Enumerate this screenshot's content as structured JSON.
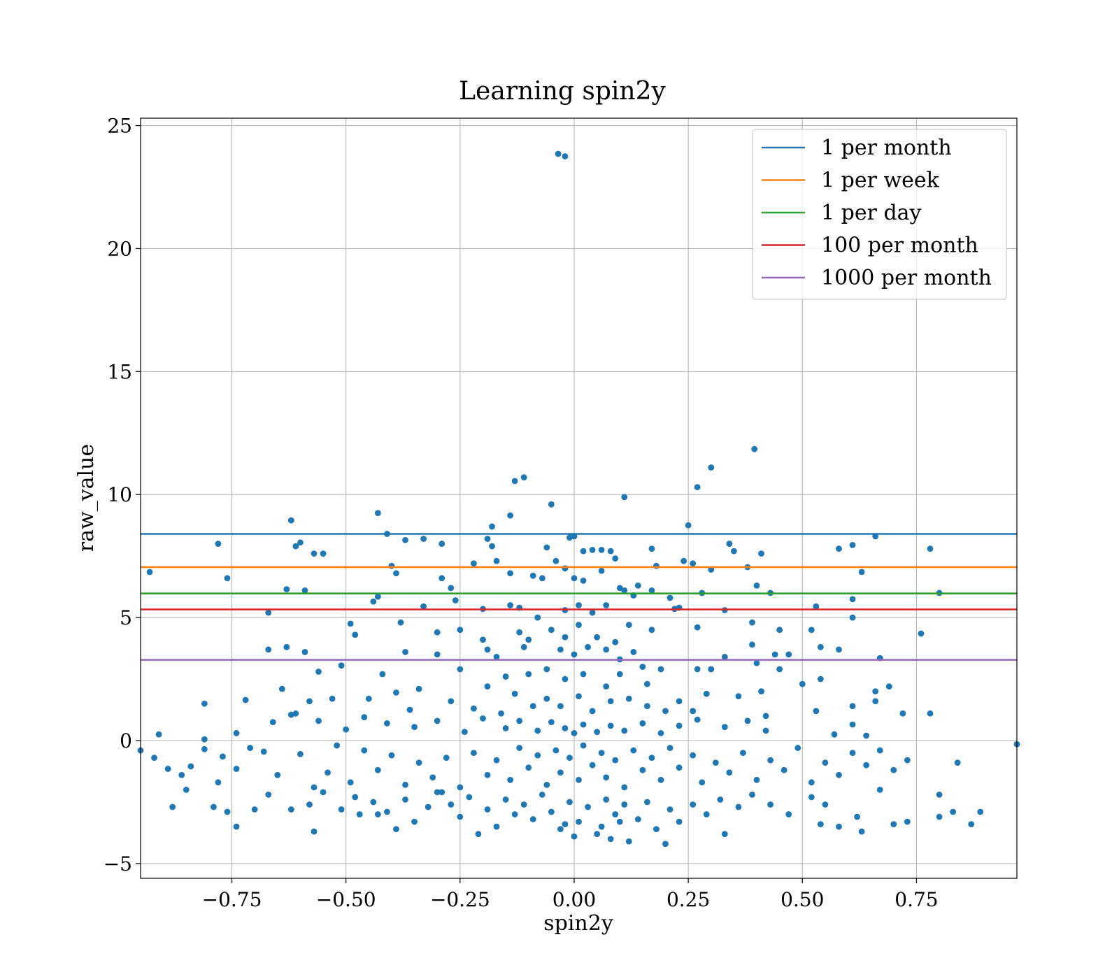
{
  "chart_data": {
    "type": "scatter",
    "title": "Learning spin2y",
    "xlabel": "spin2y",
    "ylabel": "raw_value",
    "xlim": [
      -0.95,
      0.97
    ],
    "ylim": [
      -5.6,
      25.3
    ],
    "xticks": [
      -0.75,
      -0.5,
      -0.25,
      0.0,
      0.25,
      0.5,
      0.75
    ],
    "xtick_labels": [
      "−0.75",
      "−0.50",
      "−0.25",
      "0.00",
      "0.25",
      "0.50",
      "0.75"
    ],
    "yticks": [
      -5,
      0,
      5,
      10,
      15,
      20,
      25
    ],
    "ytick_labels": [
      "−5",
      "0",
      "5",
      "10",
      "15",
      "20",
      "25"
    ],
    "grid": true,
    "legend_position": "top-right",
    "point_color": "#1f77b4",
    "hlines": [
      {
        "name": "1 per month",
        "y": 8.4,
        "color": "#1f77b4"
      },
      {
        "name": "1 per week",
        "y": 7.05,
        "color": "#ff7f0e"
      },
      {
        "name": "1 per day",
        "y": 5.98,
        "color": "#2ca02c"
      },
      {
        "name": "100 per month",
        "y": 5.33,
        "color": "#d62728"
      },
      {
        "name": "1000 per month",
        "y": 3.28,
        "color": "#9467bd"
      }
    ],
    "points": [
      [
        -0.035,
        23.85
      ],
      [
        -0.02,
        23.75
      ],
      [
        0.395,
        11.85
      ],
      [
        0.3,
        11.1
      ],
      [
        0.27,
        10.3
      ],
      [
        -0.11,
        10.7
      ],
      [
        -0.13,
        10.55
      ],
      [
        0.11,
        9.9
      ],
      [
        -0.05,
        9.6
      ],
      [
        -0.43,
        9.25
      ],
      [
        -0.14,
        9.15
      ],
      [
        -0.62,
        8.95
      ],
      [
        -0.18,
        8.7
      ],
      [
        0.25,
        8.75
      ],
      [
        -0.41,
        8.4
      ],
      [
        -0.78,
        8.0
      ],
      [
        -0.6,
        8.05
      ],
      [
        -0.37,
        8.15
      ],
      [
        -0.33,
        8.2
      ],
      [
        -0.29,
        8.0
      ],
      [
        -0.61,
        7.9
      ],
      [
        -0.57,
        7.6
      ],
      [
        -0.55,
        7.6
      ],
      [
        -0.19,
        8.2
      ],
      [
        -0.18,
        7.9
      ],
      [
        -0.06,
        7.85
      ],
      [
        -0.01,
        8.25
      ],
      [
        0.0,
        8.3
      ],
      [
        0.02,
        7.7
      ],
      [
        0.04,
        7.75
      ],
      [
        0.06,
        7.75
      ],
      [
        0.08,
        7.7
      ],
      [
        0.17,
        7.8
      ],
      [
        0.24,
        7.3
      ],
      [
        0.26,
        7.2
      ],
      [
        0.34,
        8.0
      ],
      [
        0.35,
        7.7
      ],
      [
        0.41,
        7.6
      ],
      [
        0.58,
        7.8
      ],
      [
        0.61,
        7.95
      ],
      [
        0.66,
        8.3
      ],
      [
        0.78,
        7.8
      ],
      [
        -0.93,
        6.85
      ],
      [
        -0.76,
        6.6
      ],
      [
        -0.63,
        6.15
      ],
      [
        -0.59,
        6.1
      ],
      [
        -0.4,
        7.1
      ],
      [
        -0.39,
        6.8
      ],
      [
        -0.29,
        6.6
      ],
      [
        -0.27,
        6.2
      ],
      [
        -0.22,
        7.2
      ],
      [
        -0.17,
        7.3
      ],
      [
        -0.14,
        6.8
      ],
      [
        -0.09,
        6.7
      ],
      [
        -0.07,
        6.6
      ],
      [
        -0.04,
        7.3
      ],
      [
        -0.02,
        7.0
      ],
      [
        0.0,
        6.6
      ],
      [
        0.02,
        6.5
      ],
      [
        0.06,
        6.9
      ],
      [
        0.09,
        7.4
      ],
      [
        0.1,
        6.2
      ],
      [
        0.11,
        6.1
      ],
      [
        0.14,
        6.3
      ],
      [
        0.18,
        7.1
      ],
      [
        0.21,
        5.8
      ],
      [
        0.23,
        5.4
      ],
      [
        0.28,
        6.0
      ],
      [
        0.3,
        6.95
      ],
      [
        0.38,
        7.05
      ],
      [
        0.4,
        6.3
      ],
      [
        0.43,
        6.0
      ],
      [
        0.61,
        5.75
      ],
      [
        0.63,
        6.85
      ],
      [
        0.8,
        6.0
      ],
      [
        -0.67,
        5.2
      ],
      [
        -0.44,
        5.65
      ],
      [
        -0.43,
        5.85
      ],
      [
        -0.38,
        4.8
      ],
      [
        -0.33,
        5.45
      ],
      [
        -0.26,
        5.7
      ],
      [
        -0.2,
        5.35
      ],
      [
        -0.14,
        5.5
      ],
      [
        -0.12,
        5.4
      ],
      [
        -0.08,
        5.0
      ],
      [
        -0.02,
        5.3
      ],
      [
        0.01,
        5.5
      ],
      [
        0.04,
        5.2
      ],
      [
        0.07,
        5.5
      ],
      [
        0.13,
        5.9
      ],
      [
        0.17,
        6.1
      ],
      [
        0.22,
        5.35
      ],
      [
        0.33,
        5.3
      ],
      [
        0.39,
        4.8
      ],
      [
        0.53,
        5.45
      ],
      [
        0.61,
        5.0
      ],
      [
        -0.49,
        4.75
      ],
      [
        -0.48,
        4.3
      ],
      [
        -0.3,
        4.4
      ],
      [
        -0.25,
        4.5
      ],
      [
        -0.2,
        4.1
      ],
      [
        -0.12,
        4.4
      ],
      [
        -0.1,
        4.1
      ],
      [
        -0.05,
        4.5
      ],
      [
        -0.02,
        4.2
      ],
      [
        0.01,
        4.7
      ],
      [
        0.05,
        4.2
      ],
      [
        0.09,
        4.0
      ],
      [
        0.12,
        4.7
      ],
      [
        0.17,
        4.5
      ],
      [
        0.27,
        4.6
      ],
      [
        0.45,
        4.5
      ],
      [
        0.52,
        4.5
      ],
      [
        0.76,
        4.35
      ],
      [
        -0.67,
        3.7
      ],
      [
        -0.63,
        3.8
      ],
      [
        -0.59,
        3.6
      ],
      [
        -0.37,
        3.6
      ],
      [
        -0.3,
        3.5
      ],
      [
        -0.19,
        3.7
      ],
      [
        -0.17,
        3.4
      ],
      [
        -0.11,
        3.8
      ],
      [
        -0.03,
        3.7
      ],
      [
        0.0,
        3.5
      ],
      [
        0.03,
        3.8
      ],
      [
        0.07,
        3.7
      ],
      [
        0.1,
        3.3
      ],
      [
        0.13,
        3.6
      ],
      [
        0.15,
        3.0
      ],
      [
        0.33,
        3.4
      ],
      [
        0.39,
        3.9
      ],
      [
        0.4,
        3.15
      ],
      [
        0.44,
        3.5
      ],
      [
        0.47,
        3.5
      ],
      [
        0.54,
        3.8
      ],
      [
        0.58,
        3.7
      ],
      [
        0.67,
        3.35
      ],
      [
        -0.56,
        2.8
      ],
      [
        -0.51,
        3.05
      ],
      [
        -0.42,
        2.7
      ],
      [
        -0.34,
        2.1
      ],
      [
        -0.25,
        2.9
      ],
      [
        -0.19,
        2.2
      ],
      [
        -0.15,
        2.6
      ],
      [
        -0.1,
        2.7
      ],
      [
        -0.06,
        2.9
      ],
      [
        -0.02,
        2.5
      ],
      [
        0.02,
        2.7
      ],
      [
        0.07,
        2.2
      ],
      [
        0.1,
        2.7
      ],
      [
        0.16,
        2.3
      ],
      [
        0.19,
        2.9
      ],
      [
        0.27,
        2.9
      ],
      [
        0.3,
        2.9
      ],
      [
        0.41,
        2.0
      ],
      [
        0.45,
        2.9
      ],
      [
        0.5,
        2.3
      ],
      [
        0.54,
        2.5
      ],
      [
        0.66,
        2.0
      ],
      [
        0.69,
        2.2
      ],
      [
        -0.81,
        1.5
      ],
      [
        -0.72,
        1.65
      ],
      [
        -0.64,
        2.1
      ],
      [
        -0.61,
        1.1
      ],
      [
        -0.58,
        1.6
      ],
      [
        -0.53,
        1.7
      ],
      [
        -0.45,
        1.7
      ],
      [
        -0.39,
        1.95
      ],
      [
        -0.36,
        1.25
      ],
      [
        -0.27,
        1.6
      ],
      [
        -0.22,
        1.3
      ],
      [
        -0.16,
        1.1
      ],
      [
        -0.13,
        1.9
      ],
      [
        -0.09,
        1.4
      ],
      [
        -0.06,
        1.7
      ],
      [
        -0.03,
        1.4
      ],
      [
        0.01,
        1.8
      ],
      [
        0.04,
        1.2
      ],
      [
        0.08,
        1.6
      ],
      [
        0.12,
        1.7
      ],
      [
        0.16,
        1.4
      ],
      [
        0.2,
        1.2
      ],
      [
        0.23,
        1.6
      ],
      [
        0.26,
        1.2
      ],
      [
        0.29,
        1.9
      ],
      [
        0.36,
        1.8
      ],
      [
        0.42,
        1.0
      ],
      [
        0.53,
        1.2
      ],
      [
        0.61,
        1.4
      ],
      [
        0.66,
        1.6
      ],
      [
        0.72,
        1.1
      ],
      [
        0.78,
        1.1
      ],
      [
        -0.91,
        0.25
      ],
      [
        -0.81,
        0.05
      ],
      [
        -0.74,
        0.3
      ],
      [
        -0.66,
        0.75
      ],
      [
        -0.62,
        1.05
      ],
      [
        -0.56,
        0.8
      ],
      [
        -0.5,
        0.45
      ],
      [
        -0.46,
        0.95
      ],
      [
        -0.41,
        0.7
      ],
      [
        -0.35,
        0.55
      ],
      [
        -0.3,
        0.8
      ],
      [
        -0.24,
        0.35
      ],
      [
        -0.2,
        0.9
      ],
      [
        -0.15,
        0.5
      ],
      [
        -0.12,
        0.8
      ],
      [
        -0.08,
        0.4
      ],
      [
        -0.05,
        0.75
      ],
      [
        -0.02,
        0.5
      ],
      [
        0.0,
        0.3
      ],
      [
        0.02,
        0.65
      ],
      [
        0.05,
        0.35
      ],
      [
        0.08,
        0.6
      ],
      [
        0.11,
        0.4
      ],
      [
        0.15,
        0.7
      ],
      [
        0.19,
        0.3
      ],
      [
        0.23,
        0.6
      ],
      [
        0.27,
        0.85
      ],
      [
        0.33,
        0.55
      ],
      [
        0.38,
        0.8
      ],
      [
        0.42,
        0.4
      ],
      [
        0.57,
        0.25
      ],
      [
        0.61,
        0.65
      ],
      [
        0.64,
        0.2
      ],
      [
        -0.95,
        -0.4
      ],
      [
        -0.92,
        -0.7
      ],
      [
        -0.89,
        -1.15
      ],
      [
        -0.86,
        -1.4
      ],
      [
        -0.84,
        -1.05
      ],
      [
        -0.81,
        -0.35
      ],
      [
        -0.78,
        -1.7
      ],
      [
        -0.77,
        -0.65
      ],
      [
        -0.74,
        -1.15
      ],
      [
        -0.71,
        -0.3
      ],
      [
        -0.68,
        -0.45
      ],
      [
        -0.65,
        -1.4
      ],
      [
        -0.6,
        -0.55
      ],
      [
        -0.57,
        -1.9
      ],
      [
        -0.54,
        -1.3
      ],
      [
        -0.52,
        -0.2
      ],
      [
        -0.49,
        -1.7
      ],
      [
        -0.46,
        -0.4
      ],
      [
        -0.43,
        -1.2
      ],
      [
        -0.4,
        -0.6
      ],
      [
        -0.37,
        -1.8
      ],
      [
        -0.34,
        -0.9
      ],
      [
        -0.31,
        -1.5
      ],
      [
        -0.28,
        -0.7
      ],
      [
        -0.25,
        -1.9
      ],
      [
        -0.22,
        -0.5
      ],
      [
        -0.19,
        -1.4
      ],
      [
        -0.17,
        -0.8
      ],
      [
        -0.14,
        -1.6
      ],
      [
        -0.12,
        -0.3
      ],
      [
        -0.1,
        -1.1
      ],
      [
        -0.08,
        -0.6
      ],
      [
        -0.06,
        -1.8
      ],
      [
        -0.04,
        -0.4
      ],
      [
        -0.03,
        -1.3
      ],
      [
        -0.01,
        -0.7
      ],
      [
        0.01,
        -1.6
      ],
      [
        0.02,
        -0.2
      ],
      [
        0.04,
        -1.0
      ],
      [
        0.06,
        -0.5
      ],
      [
        0.07,
        -1.5
      ],
      [
        0.09,
        -0.8
      ],
      [
        0.11,
        -1.9
      ],
      [
        0.13,
        -0.4
      ],
      [
        0.15,
        -1.2
      ],
      [
        0.17,
        -0.7
      ],
      [
        0.19,
        -1.6
      ],
      [
        0.21,
        -0.3
      ],
      [
        0.23,
        -1.1
      ],
      [
        0.26,
        -0.6
      ],
      [
        0.28,
        -1.7
      ],
      [
        0.31,
        -0.9
      ],
      [
        0.34,
        -1.3
      ],
      [
        0.37,
        -0.5
      ],
      [
        0.4,
        -1.6
      ],
      [
        0.43,
        -0.8
      ],
      [
        0.46,
        -1.2
      ],
      [
        0.49,
        -0.3
      ],
      [
        0.52,
        -1.7
      ],
      [
        0.55,
        -0.9
      ],
      [
        0.58,
        -1.4
      ],
      [
        0.61,
        -0.5
      ],
      [
        0.64,
        -1.0
      ],
      [
        0.67,
        -0.4
      ],
      [
        0.7,
        -1.2
      ],
      [
        0.73,
        -0.8
      ],
      [
        0.84,
        -0.9
      ],
      [
        0.97,
        -0.15
      ],
      [
        -0.88,
        -2.7
      ],
      [
        -0.85,
        -2.0
      ],
      [
        -0.79,
        -2.7
      ],
      [
        -0.76,
        -2.9
      ],
      [
        -0.74,
        -3.5
      ],
      [
        -0.7,
        -2.8
      ],
      [
        -0.67,
        -2.2
      ],
      [
        -0.62,
        -2.8
      ],
      [
        -0.58,
        -2.6
      ],
      [
        -0.57,
        -3.7
      ],
      [
        -0.55,
        -2.1
      ],
      [
        -0.51,
        -2.8
      ],
      [
        -0.48,
        -2.3
      ],
      [
        -0.47,
        -3.0
      ],
      [
        -0.44,
        -2.5
      ],
      [
        -0.41,
        -2.9
      ],
      [
        -0.39,
        -3.6
      ],
      [
        -0.37,
        -2.4
      ],
      [
        -0.35,
        -3.3
      ],
      [
        -0.32,
        -2.7
      ],
      [
        -0.3,
        -2.1
      ],
      [
        -0.27,
        -2.6
      ],
      [
        -0.25,
        -3.1
      ],
      [
        -0.23,
        -2.3
      ],
      [
        -0.21,
        -3.8
      ],
      [
        -0.19,
        -2.8
      ],
      [
        -0.17,
        -3.5
      ],
      [
        -0.15,
        -2.4
      ],
      [
        -0.13,
        -3.0
      ],
      [
        -0.11,
        -2.6
      ],
      [
        -0.09,
        -3.2
      ],
      [
        -0.07,
        -2.2
      ],
      [
        -0.05,
        -2.9
      ],
      [
        -0.03,
        -3.6
      ],
      [
        -0.01,
        -2.5
      ],
      [
        0.01,
        -3.3
      ],
      [
        0.03,
        -2.7
      ],
      [
        0.05,
        -3.8
      ],
      [
        0.07,
        -2.4
      ],
      [
        0.09,
        -3.0
      ],
      [
        0.11,
        -2.6
      ],
      [
        0.12,
        -4.1
      ],
      [
        0.14,
        -3.2
      ],
      [
        0.16,
        -2.5
      ],
      [
        0.18,
        -3.6
      ],
      [
        0.2,
        -4.2
      ],
      [
        0.21,
        -2.8
      ],
      [
        0.23,
        -3.3
      ],
      [
        0.26,
        -2.6
      ],
      [
        0.29,
        -3.0
      ],
      [
        0.32,
        -2.4
      ],
      [
        0.33,
        -3.8
      ],
      [
        0.36,
        -2.7
      ],
      [
        0.39,
        -2.2
      ],
      [
        0.43,
        -2.6
      ],
      [
        0.47,
        -3.0
      ],
      [
        0.52,
        -2.3
      ],
      [
        0.54,
        -3.4
      ],
      [
        0.58,
        -3.5
      ],
      [
        0.63,
        -3.7
      ],
      [
        0.67,
        -2.0
      ],
      [
        0.7,
        -3.4
      ],
      [
        0.73,
        -3.3
      ],
      [
        0.8,
        -2.2
      ],
      [
        0.83,
        -2.9
      ],
      [
        0.87,
        -3.4
      ],
      [
        0.89,
        -2.9
      ],
      [
        0.8,
        -3.1
      ],
      [
        0.62,
        -3.1
      ],
      [
        0.55,
        -2.6
      ],
      [
        -0.43,
        -3.0
      ],
      [
        -0.29,
        -2.1
      ],
      [
        0.0,
        -3.9
      ],
      [
        -0.02,
        -3.4
      ],
      [
        0.06,
        -3.5
      ],
      [
        0.08,
        -4.0
      ],
      [
        0.1,
        -3.3
      ]
    ]
  }
}
